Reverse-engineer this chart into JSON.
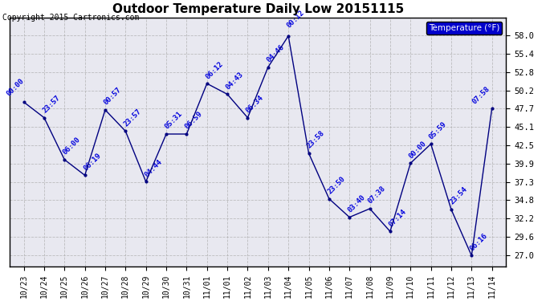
{
  "title": "Outdoor Temperature Daily Low 20151115",
  "copyright": "Copyright 2015 Cartronics.com",
  "legend_label": "Temperature (°F)",
  "bg_color": "#ffffff",
  "plot_bg_color": "#e8e8f0",
  "line_color": "#000080",
  "label_color": "#0000dd",
  "x_labels": [
    "10/23",
    "10/24",
    "10/25",
    "10/26",
    "10/27",
    "10/28",
    "10/29",
    "10/30",
    "10/31",
    "11/01",
    "11/01",
    "11/02",
    "11/03",
    "11/04",
    "11/05",
    "11/06",
    "11/07",
    "11/08",
    "11/09",
    "11/10",
    "11/11",
    "11/12",
    "11/13",
    "11/14"
  ],
  "x_positions": [
    0,
    1,
    2,
    3,
    4,
    5,
    6,
    7,
    8,
    9,
    10,
    11,
    12,
    13,
    14,
    15,
    16,
    17,
    18,
    19,
    20,
    21,
    22,
    23
  ],
  "y_values": [
    48.6,
    46.4,
    40.5,
    38.3,
    47.5,
    44.5,
    37.4,
    44.1,
    44.1,
    51.2,
    49.7,
    46.4,
    53.5,
    57.9,
    41.4,
    35.0,
    32.4,
    33.6,
    30.4,
    40.0,
    42.7,
    33.5,
    27.0,
    47.7
  ],
  "point_labels": [
    "00:00",
    "23:57",
    "06:00",
    "06:19",
    "00:57",
    "23:57",
    "04:44",
    "05:31",
    "06:59",
    "06:12",
    "04:43",
    "06:34",
    "04:46",
    "00:12",
    "23:58",
    "23:50",
    "03:40",
    "07:38",
    "07:14",
    "00:00",
    "05:59",
    "23:54",
    "06:16",
    "07:58"
  ],
  "yticks": [
    27.0,
    29.6,
    32.2,
    34.8,
    37.3,
    39.9,
    42.5,
    45.1,
    47.7,
    50.2,
    52.8,
    55.4,
    58.0
  ],
  "ylim": [
    25.5,
    60.5
  ],
  "grid_color": "#aaaaaa"
}
